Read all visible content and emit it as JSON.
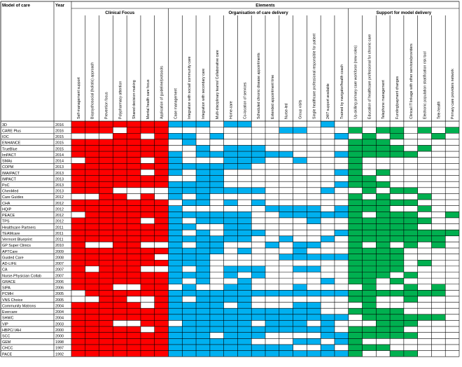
{
  "header": {
    "model_label": "Model of care",
    "year_label": "Year",
    "elements_label": "Elements"
  },
  "groups": [
    {
      "name": "Clinical Focus",
      "color": "#ff0000"
    },
    {
      "name": "Organisation of care delivery",
      "color": "#00b0f0"
    },
    {
      "name": "Support for model delivery",
      "color": "#00b050"
    }
  ],
  "columns": [
    {
      "label": "Self-management support",
      "group": 0
    },
    {
      "label": "Biopsychosocial (holistic) approach",
      "group": 0
    },
    {
      "label": "Prevention focus",
      "group": 0
    },
    {
      "label": "Polypharmacy attention",
      "group": 0
    },
    {
      "label": "Shared decision-making",
      "group": 0
    },
    {
      "label": "Mental health care focus",
      "group": 0
    },
    {
      "label": "Application of guideline/protocols",
      "group": 0
    },
    {
      "label": "Case management",
      "group": 1
    },
    {
      "label": "Integration with social/ community care",
      "group": 1
    },
    {
      "label": "Integration with secondary care",
      "group": 1
    },
    {
      "label": "Multi-disciplinary teams/ Collaborative care",
      "group": 1
    },
    {
      "label": "Home-care",
      "group": 1
    },
    {
      "label": "Co-location of services",
      "group": 1
    },
    {
      "label": "Scheduled chronic disease appointments",
      "group": 1
    },
    {
      "label": "Extended appointment time",
      "group": 1
    },
    {
      "label": "Nurse-led",
      "group": 1
    },
    {
      "label": "Group visits",
      "group": 1
    },
    {
      "label": "Single healthcare professional responsible for patient",
      "group": 1
    },
    {
      "label": "24/7 support available",
      "group": 1
    },
    {
      "label": "Trained by navigator/health coach",
      "group": 1
    },
    {
      "label": "Up-skilling primary care workforce (new roles)",
      "group": 2
    },
    {
      "label": "Education of healthcare professional for chronic care",
      "group": 2
    },
    {
      "label": "Telephone management",
      "group": 2
    },
    {
      "label": "Funding/payment changes",
      "group": 2
    },
    {
      "label": "Clinical IT linkage with other services/providers",
      "group": 2
    },
    {
      "label": "Electronic population stratification risk tool",
      "group": 2
    },
    {
      "label": "Tele-health",
      "group": 2
    },
    {
      "label": "Primary care providers network",
      "group": 2
    }
  ],
  "rows": [
    {
      "model": "3D",
      "year": "2016",
      "cells": "1111111111011000001000000000"
    },
    {
      "model": "CARE Plus",
      "year": "2016",
      "cells": "1110111000000001100010110101"
    },
    {
      "model": "IOC",
      "year": "2015",
      "cells": "0001101110100000000101010010"
    },
    {
      "model": "ENHANCE",
      "year": "2015",
      "cells": "1111111010000000000011100000"
    },
    {
      "model": "TrueBlue",
      "year": "2015",
      "cells": "1111111001011100000011110100"
    },
    {
      "model": "ImPACT",
      "year": "2014",
      "cells": "1111111101111111000111111000"
    },
    {
      "model": "SMAs",
      "year": "2014",
      "cells": "0111101100011100100010000000"
    },
    {
      "model": "COPM",
      "year": "2013",
      "cells": "1111111111111000000010000000"
    },
    {
      "model": "IMA/PACT",
      "year": "2013",
      "cells": "1111101101100000000110100000"
    },
    {
      "model": "IMPACT",
      "year": "2013",
      "cells": "1111111001100000000011000000"
    },
    {
      "model": "PoC",
      "year": "2013",
      "cells": "1111111111100000000111100000"
    },
    {
      "model": "ChenMed",
      "year": "2013",
      "cells": "1110000111111100001001011000"
    },
    {
      "model": "Care Guides",
      "year": "2012",
      "cells": "0011010101000000000010100100"
    },
    {
      "model": "CHA",
      "year": "2012",
      "cells": "1111111011010100000011111000"
    },
    {
      "model": "HQIP",
      "year": "2012",
      "cells": "1111111100000011110111100100"
    },
    {
      "model": "PEACE",
      "year": "2012",
      "cells": "0111111111111001111110111001"
    },
    {
      "model": "TPS",
      "year": "2012",
      "cells": "1111101101111000010011111100"
    },
    {
      "model": "Healthcare Partners",
      "year": "2011",
      "cells": "1111111110011000000011111000"
    },
    {
      "model": "TEAMcare",
      "year": "2011",
      "cells": "1111111101011100000111111111"
    },
    {
      "model": "Vermont Blueprint",
      "year": "2011",
      "cells": "1111111111111001001011111110"
    },
    {
      "model": "GP Super Clinics",
      "year": "2010",
      "cells": "1001100101100010110010101010"
    },
    {
      "model": "APTCare",
      "year": "2009",
      "cells": "1111111111101000100011110000"
    },
    {
      "model": "Guided Care",
      "year": "2008",
      "cells": "1111110111000001111111110000"
    },
    {
      "model": "AD-LIFE",
      "year": "2007",
      "cells": "1111111111000000000011110100"
    },
    {
      "model": "CA",
      "year": "2007",
      "cells": "1011100101011100110011110000"
    },
    {
      "model": "Nurse-Physician Collab",
      "year": "2007",
      "cells": "1111111111010100000011101000"
    },
    {
      "model": "GRACE",
      "year": "2006",
      "cells": "1111111101001000001011010000"
    },
    {
      "model": "SIPA",
      "year": "2006",
      "cells": "1110011010011000100001001010"
    },
    {
      "model": "PCMH",
      "year": "2005",
      "cells": "0111111111111111111111111110"
    },
    {
      "model": "VNS Choice",
      "year": "2005",
      "cells": "0011001101111000000011001000"
    },
    {
      "model": "Community Matrons",
      "year": "2004",
      "cells": "1111101111101000110001000000"
    },
    {
      "model": "Evercare",
      "year": "2004",
      "cells": "1111111111111111110011110000"
    },
    {
      "model": "SHWC",
      "year": "2004",
      "cells": "1111111111111111111101111110"
    },
    {
      "model": "VIP",
      "year": "2003",
      "cells": "1110011011111011101000111000"
    },
    {
      "model": "HBPC/ IAH",
      "year": "2000",
      "cells": "1111101111111111111011110000"
    },
    {
      "model": "SCC",
      "year": "2000",
      "cells": "1111111111011100001111111000"
    },
    {
      "model": "GEM",
      "year": "1998",
      "cells": "1111111111111000110110000000"
    },
    {
      "model": "CHCC",
      "year": "1997",
      "cells": "1111111111111111001011100000"
    },
    {
      "model": "PACE",
      "year": "1992",
      "cells": "1111111111111111111110011000"
    }
  ]
}
